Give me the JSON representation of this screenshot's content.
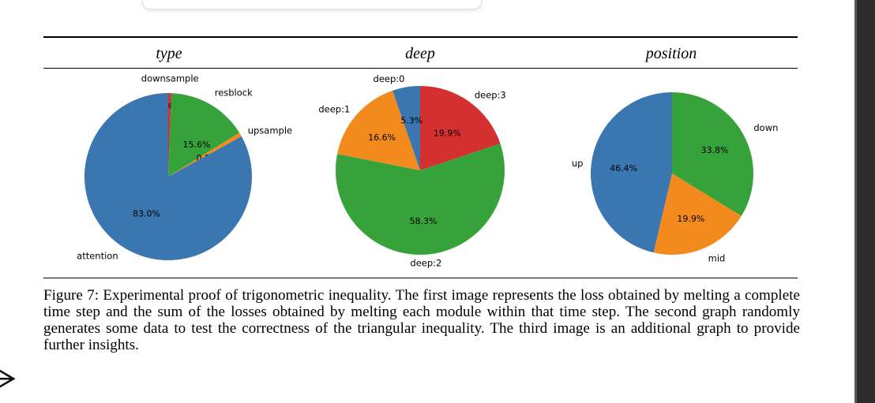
{
  "columns": [
    "type",
    "deep",
    "position"
  ],
  "colors": {
    "blue": "#3a76b0",
    "orange": "#f28a1e",
    "green": "#36a33a",
    "red": "#d3302f",
    "purple": "#9467bd"
  },
  "chart_data": [
    {
      "type": "pie",
      "title": "type",
      "slices": [
        {
          "label": "downsample",
          "value": 0.6,
          "pct_label": "0.6%",
          "color": "#d3302f"
        },
        {
          "label": "resblock",
          "value": 15.6,
          "pct_label": "15.6%",
          "color": "#36a33a"
        },
        {
          "label": "upsample",
          "value": 0.8,
          "pct_label": "0.8%",
          "color": "#f28a1e"
        },
        {
          "label": "attention",
          "value": 83.0,
          "pct_label": "83.0%",
          "color": "#3a76b0"
        }
      ]
    },
    {
      "type": "pie",
      "title": "deep",
      "slices": [
        {
          "label": "deep:3",
          "value": 19.9,
          "pct_label": "19.9%",
          "color": "#d3302f"
        },
        {
          "label": "deep:2",
          "value": 58.3,
          "pct_label": "58.3%",
          "color": "#36a33a"
        },
        {
          "label": "deep:1",
          "value": 16.6,
          "pct_label": "16.6%",
          "color": "#f28a1e"
        },
        {
          "label": "deep:0",
          "value": 5.3,
          "pct_label": "5.3%",
          "color": "#3a76b0"
        }
      ]
    },
    {
      "type": "pie",
      "title": "position",
      "slices": [
        {
          "label": "down",
          "value": 33.8,
          "pct_label": "33.8%",
          "color": "#36a33a"
        },
        {
          "label": "mid",
          "value": 19.9,
          "pct_label": "19.9%",
          "color": "#f28a1e"
        },
        {
          "label": "up",
          "value": 46.4,
          "pct_label": "46.4%",
          "color": "#3a76b0"
        }
      ]
    }
  ],
  "caption": "Figure 7: Experimental proof of trigonometric inequality.  The first image represents the loss obtained by melting a complete time step and the sum of the losses obtained by melting each module within that time step. The second graph randomly generates some data to test the correctness of the triangular inequality. The third image is an additional graph to provide further insights.",
  "side_glyph": "ᗒ"
}
